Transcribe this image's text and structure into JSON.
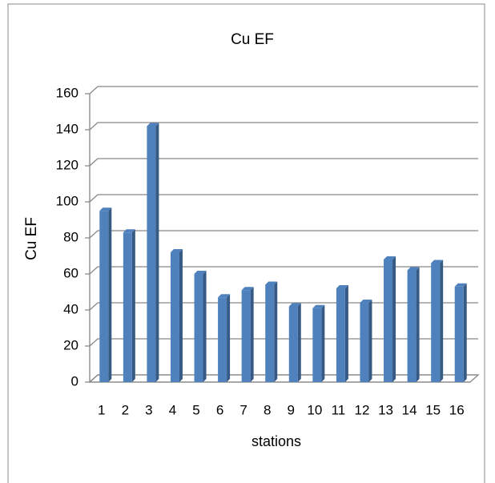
{
  "chart_data": {
    "type": "bar",
    "title": "Cu EF",
    "x_label": "stations",
    "y_label": "Cu EF",
    "categories": [
      "1",
      "2",
      "3",
      "4",
      "5",
      "6",
      "7",
      "8",
      "9",
      "10",
      "11",
      "12",
      "13",
      "14",
      "15",
      "16"
    ],
    "values": [
      95,
      83,
      142,
      72,
      60,
      47,
      51,
      54,
      42,
      41,
      52,
      44,
      68,
      62,
      66,
      53
    ],
    "color": "#4f81bd",
    "ylim": [
      0,
      160
    ],
    "yticks": [
      0,
      20,
      40,
      60,
      80,
      100,
      120,
      140,
      160
    ],
    "grid": true
  }
}
